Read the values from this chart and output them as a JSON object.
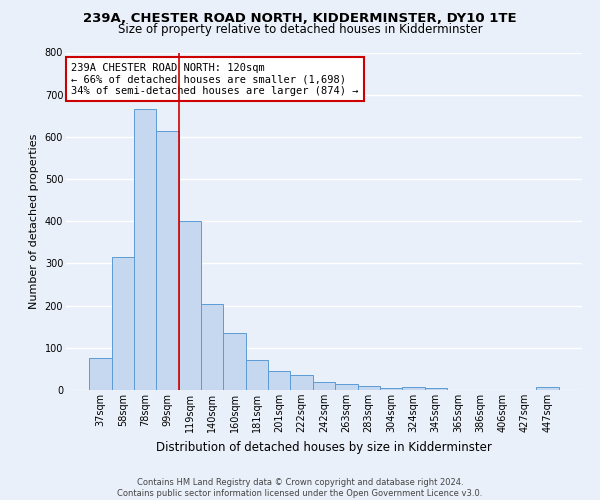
{
  "title": "239A, CHESTER ROAD NORTH, KIDDERMINSTER, DY10 1TE",
  "subtitle": "Size of property relative to detached houses in Kidderminster",
  "xlabel": "Distribution of detached houses by size in Kidderminster",
  "ylabel": "Number of detached properties",
  "footer_line1": "Contains HM Land Registry data © Crown copyright and database right 2024.",
  "footer_line2": "Contains public sector information licensed under the Open Government Licence v3.0.",
  "categories": [
    "37sqm",
    "58sqm",
    "78sqm",
    "99sqm",
    "119sqm",
    "140sqm",
    "160sqm",
    "181sqm",
    "201sqm",
    "222sqm",
    "242sqm",
    "263sqm",
    "283sqm",
    "304sqm",
    "324sqm",
    "345sqm",
    "365sqm",
    "386sqm",
    "406sqm",
    "427sqm",
    "447sqm"
  ],
  "values": [
    75,
    315,
    665,
    615,
    400,
    205,
    135,
    70,
    45,
    35,
    20,
    15,
    10,
    5,
    8,
    5,
    0,
    0,
    0,
    0,
    8
  ],
  "bar_color": "#c5d8f0",
  "bar_edge_color": "#5b9bd5",
  "vline_x_index": 3.5,
  "vline_color": "#cc0000",
  "annotation_line1": "239A CHESTER ROAD NORTH: 120sqm",
  "annotation_line2": "← 66% of detached houses are smaller (1,698)",
  "annotation_line3": "34% of semi-detached houses are larger (874) →",
  "annotation_box_color": "#ffffff",
  "annotation_box_edge_color": "#cc0000",
  "ylim": [
    0,
    800
  ],
  "yticks": [
    0,
    100,
    200,
    300,
    400,
    500,
    600,
    700,
    800
  ],
  "bg_color": "#eaf0f9",
  "plot_bg_color": "#eaf0f9",
  "grid_color": "#ffffff",
  "title_fontsize": 9.5,
  "subtitle_fontsize": 8.5,
  "xlabel_fontsize": 8.5,
  "ylabel_fontsize": 8,
  "tick_fontsize": 7,
  "annotation_fontsize": 7.5,
  "footer_fontsize": 6
}
